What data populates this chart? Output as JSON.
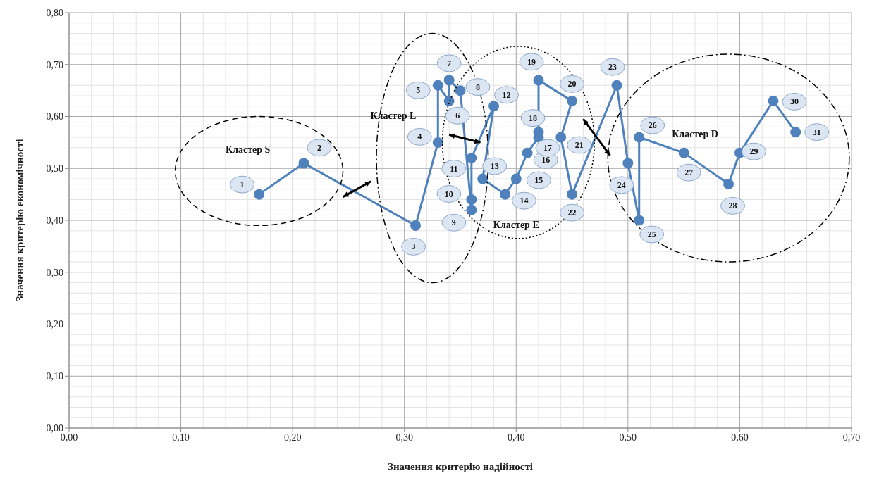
{
  "chart_data": {
    "type": "line",
    "xlabel": "Значення критерію надійності",
    "ylabel": "Значення критерію економічності",
    "x": [
      0.17,
      0.21,
      0.31,
      0.33,
      0.33,
      0.34,
      0.34,
      0.35,
      0.36,
      0.36,
      0.36,
      0.38,
      0.37,
      0.39,
      0.4,
      0.41,
      0.42,
      0.42,
      0.42,
      0.45,
      0.44,
      0.45,
      0.49,
      0.5,
      0.51,
      0.51,
      0.55,
      0.59,
      0.6,
      0.63,
      0.65
    ],
    "series": [
      {
        "color": "#4f81bd",
        "values": [
          0.45,
          0.51,
          0.39,
          0.55,
          0.66,
          0.63,
          0.67,
          0.65,
          0.42,
          0.44,
          0.52,
          0.62,
          0.48,
          0.45,
          0.48,
          0.53,
          0.56,
          0.57,
          0.67,
          0.63,
          0.56,
          0.45,
          0.66,
          0.51,
          0.4,
          0.56,
          0.53,
          0.47,
          0.53,
          0.63,
          0.57
        ]
      }
    ],
    "xlim": [
      0,
      0.7
    ],
    "ylim": [
      0,
      0.8
    ],
    "xticks": [
      {
        "value": 0,
        "label": "0,00"
      },
      {
        "value": 0.1,
        "label": "0,10"
      },
      {
        "value": 0.2,
        "label": "0,20"
      },
      {
        "value": 0.3,
        "label": "0,30"
      },
      {
        "value": 0.4,
        "label": "0,40"
      },
      {
        "value": 0.5,
        "label": "0,50"
      },
      {
        "value": 0.6,
        "label": "0,60"
      },
      {
        "value": 0.7,
        "label": "0,70"
      }
    ],
    "yticks": [
      {
        "value": 0,
        "label": "0,00"
      },
      {
        "value": 0.1,
        "label": "0,10"
      },
      {
        "value": 0.2,
        "label": "0,20"
      },
      {
        "value": 0.3,
        "label": "0,30"
      },
      {
        "value": 0.4,
        "label": "0,40"
      },
      {
        "value": 0.5,
        "label": "0,50"
      },
      {
        "value": 0.6,
        "label": "0,60"
      },
      {
        "value": 0.7,
        "label": "0,70"
      },
      {
        "value": 0.8,
        "label": "0,80"
      }
    ],
    "grid": true,
    "marker": "circle",
    "line_style": "solid",
    "annotations": [
      "Кластер S",
      "Кластер L",
      "Кластер E",
      "Кластер D",
      {
        "text": "1",
        "x": 0.17,
        "y": 0.45
      },
      {
        "text": "2",
        "x": 0.21,
        "y": 0.51
      },
      {
        "text": "3",
        "x": 0.31,
        "y": 0.39
      },
      {
        "text": "4",
        "x": 0.33,
        "y": 0.55
      },
      {
        "text": "5",
        "x": 0.33,
        "y": 0.66
      },
      {
        "text": "6",
        "x": 0.34,
        "y": 0.63
      },
      {
        "text": "7",
        "x": 0.34,
        "y": 0.67
      },
      {
        "text": "8",
        "x": 0.35,
        "y": 0.65
      },
      {
        "text": "9",
        "x": 0.36,
        "y": 0.42
      },
      {
        "text": "10",
        "x": 0.36,
        "y": 0.44
      },
      {
        "text": "11",
        "x": 0.36,
        "y": 0.52
      },
      {
        "text": "12",
        "x": 0.38,
        "y": 0.62
      },
      {
        "text": "13",
        "x": 0.37,
        "y": 0.48
      },
      {
        "text": "14",
        "x": 0.39,
        "y": 0.45
      },
      {
        "text": "15",
        "x": 0.4,
        "y": 0.48
      },
      {
        "text": "16",
        "x": 0.41,
        "y": 0.53
      },
      {
        "text": "17",
        "x": 0.42,
        "y": 0.56
      },
      {
        "text": "18",
        "x": 0.42,
        "y": 0.57
      },
      {
        "text": "19",
        "x": 0.42,
        "y": 0.67
      },
      {
        "text": "20",
        "x": 0.45,
        "y": 0.63
      },
      {
        "text": "21",
        "x": 0.44,
        "y": 0.56
      },
      {
        "text": "22",
        "x": 0.45,
        "y": 0.45
      },
      {
        "text": "23",
        "x": 0.49,
        "y": 0.66
      },
      {
        "text": "24",
        "x": 0.5,
        "y": 0.51
      },
      {
        "text": "25",
        "x": 0.51,
        "y": 0.4
      },
      {
        "text": "26",
        "x": 0.51,
        "y": 0.56
      },
      {
        "text": "27",
        "x": 0.55,
        "y": 0.53
      },
      {
        "text": "28",
        "x": 0.59,
        "y": 0.47
      },
      {
        "text": "29",
        "x": 0.6,
        "y": 0.53
      },
      {
        "text": "30",
        "x": 0.63,
        "y": 0.63
      },
      {
        "text": "31",
        "x": 0.65,
        "y": 0.57
      }
    ]
  }
}
